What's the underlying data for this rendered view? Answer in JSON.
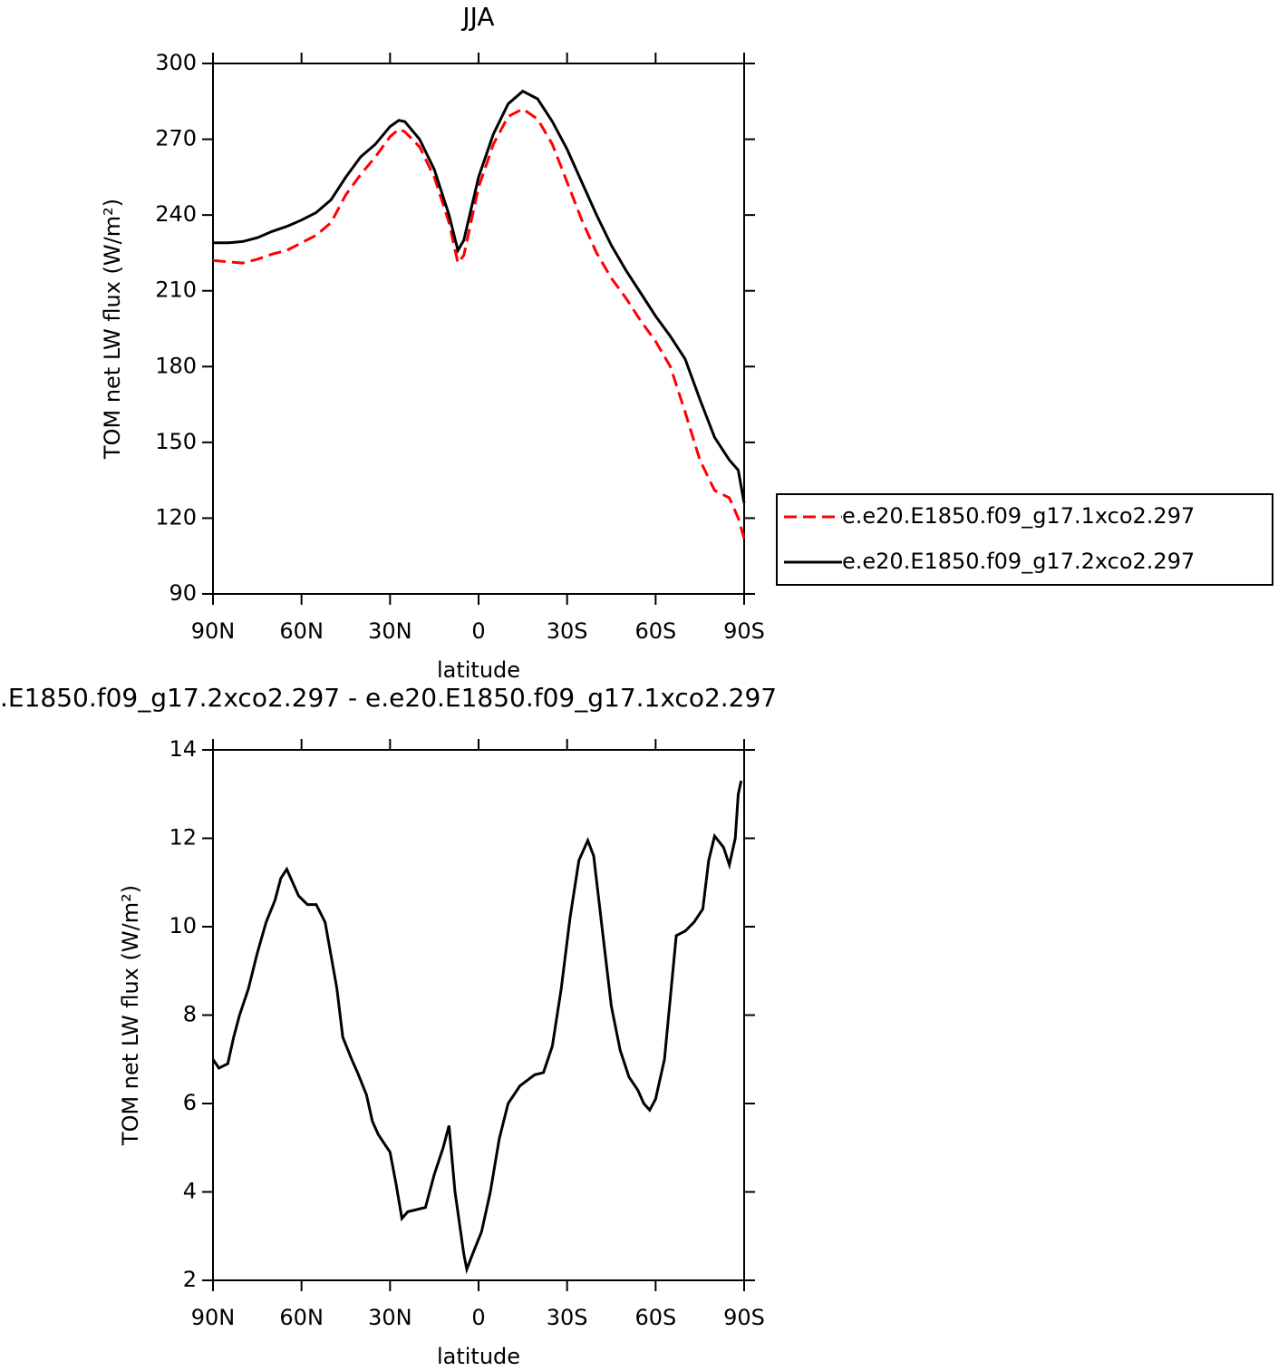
{
  "chart_data": [
    {
      "type": "line",
      "title": "JJA",
      "xlabel": "latitude",
      "ylabel": "TOM net LW flux (W/m²)",
      "x": [
        90,
        85,
        80,
        75,
        70,
        65,
        60,
        55,
        50,
        45,
        40,
        35,
        30,
        27,
        25,
        20,
        15,
        10,
        7,
        5,
        0,
        -5,
        -10,
        -15,
        -20,
        -25,
        -30,
        -35,
        -40,
        -45,
        -50,
        -55,
        -60,
        -65,
        -70,
        -75,
        -80,
        -85,
        -88,
        -90
      ],
      "series": [
        {
          "name": "e.e20.E1850.f09_g17.1xco2.297",
          "color": "#ff0000",
          "dash": "dashed",
          "values": [
            222,
            221.5,
            221,
            222.5,
            224.5,
            226,
            229,
            232,
            237,
            248,
            256,
            263,
            271,
            274,
            273,
            267,
            255,
            237,
            221,
            224,
            251,
            268,
            279,
            282,
            278,
            268,
            253,
            238,
            225,
            215,
            207,
            198,
            190,
            180,
            162,
            143,
            131,
            128,
            120,
            112
          ]
        },
        {
          "name": "e.e20.E1850.f09_g17.2xco2.297",
          "color": "#000000",
          "dash": "solid",
          "values": [
            229,
            229,
            229.5,
            231,
            233.5,
            235.5,
            238,
            241,
            246,
            255,
            263,
            268,
            275,
            277.5,
            277,
            270,
            258,
            240,
            226,
            230,
            255,
            272,
            284,
            289,
            286,
            277,
            266,
            253,
            240,
            228,
            218,
            209,
            200,
            192,
            183,
            167,
            152,
            143,
            139,
            126
          ]
        }
      ],
      "xlim": [
        90,
        -90
      ],
      "xticks": [
        {
          "value": 90,
          "label": "90N"
        },
        {
          "value": 60,
          "label": "60N"
        },
        {
          "value": 30,
          "label": "30N"
        },
        0,
        {
          "value": -30,
          "label": "30S"
        },
        {
          "value": -60,
          "label": "60S"
        },
        {
          "value": -90,
          "label": "90S"
        }
      ],
      "ylim": [
        90,
        300
      ],
      "yticks": [
        90,
        120,
        150,
        180,
        210,
        240,
        270,
        300
      ],
      "legend": "right"
    },
    {
      "type": "line",
      "title": ".E1850.f09_g17.2xco2.297 - e.e20.E1850.f09_g17.1xco2.297",
      "xlabel": "latitude",
      "ylabel": "TOM net LW flux (W/m²)",
      "x": [
        90,
        88,
        85,
        83,
        81,
        78,
        75,
        72,
        69,
        67,
        65,
        61,
        58,
        55,
        52,
        48,
        46,
        43,
        41,
        38,
        36,
        34,
        32,
        30,
        28,
        26,
        24,
        21,
        18,
        15,
        12,
        10,
        8,
        5,
        4,
        2,
        -1,
        -4,
        -7,
        -10,
        -14,
        -19,
        -22,
        -25,
        -28,
        -31,
        -34,
        -37,
        -39,
        -42,
        -45,
        -48,
        -51,
        -54,
        -56,
        -58,
        -60,
        -63,
        -65,
        -67,
        -70,
        -73,
        -76,
        -78,
        -80,
        -83,
        -85,
        -87,
        -88,
        -89
      ],
      "color": "#000000",
      "values": [
        7.0,
        6.8,
        6.9,
        7.5,
        8.0,
        8.6,
        9.4,
        10.1,
        10.6,
        11.1,
        11.3,
        10.7,
        10.5,
        10.5,
        10.1,
        8.6,
        7.5,
        7.0,
        6.7,
        6.2,
        5.6,
        5.3,
        5.1,
        4.9,
        4.2,
        3.4,
        3.55,
        3.6,
        3.65,
        4.4,
        5.0,
        5.5,
        4.0,
        2.6,
        2.25,
        2.6,
        3.1,
        4.0,
        5.2,
        6.0,
        6.4,
        6.65,
        6.7,
        7.3,
        8.6,
        10.2,
        11.5,
        11.95,
        11.6,
        9.9,
        8.2,
        7.2,
        6.6,
        6.3,
        6.0,
        5.85,
        6.1,
        7.0,
        8.4,
        9.8,
        9.9,
        10.1,
        10.4,
        11.5,
        12.05,
        11.8,
        11.4,
        12.0,
        13.0,
        13.3
      ],
      "xlim": [
        90,
        -90
      ],
      "xticks": [
        {
          "value": 90,
          "label": "90N"
        },
        {
          "value": 60,
          "label": "60N"
        },
        {
          "value": 30,
          "label": "30N"
        },
        0,
        {
          "value": -30,
          "label": "30S"
        },
        {
          "value": -60,
          "label": "60S"
        },
        {
          "value": -90,
          "label": "90S"
        }
      ],
      "ylim": [
        2,
        14
      ],
      "yticks": [
        2,
        4,
        6,
        8,
        10,
        12,
        14
      ]
    }
  ]
}
